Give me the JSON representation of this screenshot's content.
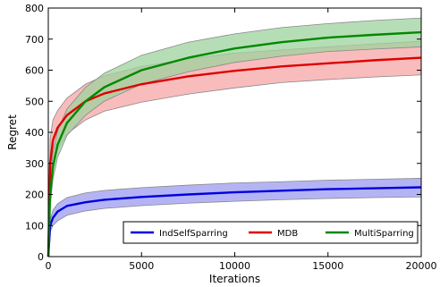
{
  "chart_data": {
    "type": "line",
    "xlabel": "Iterations",
    "ylabel": "Regret",
    "xlim": [
      0,
      20000
    ],
    "ylim": [
      0,
      800
    ],
    "x_ticks": [
      "0",
      "5000",
      "10000",
      "15000",
      "20000"
    ],
    "y_ticks": [
      "0",
      "100",
      "200",
      "300",
      "400",
      "500",
      "600",
      "700",
      "800"
    ],
    "legend_position": "lower-right",
    "grid": false,
    "x": [
      0,
      100,
      250,
      500,
      1000,
      2000,
      3000,
      5000,
      7500,
      10000,
      12500,
      15000,
      17500,
      20000
    ],
    "series": [
      {
        "name": "IndSelfSparring",
        "color": "#0000dd",
        "band_color": "#9b9bf2",
        "values": [
          0,
          100,
          125,
          145,
          163,
          175,
          183,
          192,
          200,
          207,
          212,
          217,
          220,
          223
        ],
        "lower": [
          0,
          80,
          100,
          115,
          133,
          147,
          155,
          164,
          172,
          178,
          183,
          187,
          190,
          192
        ],
        "upper": [
          0,
          120,
          150,
          170,
          190,
          205,
          213,
          222,
          230,
          237,
          241,
          246,
          249,
          252
        ]
      },
      {
        "name": "MDB",
        "color": "#dd0000",
        "band_color": "#f7a5a5",
        "values": [
          0,
          300,
          375,
          415,
          455,
          500,
          525,
          555,
          580,
          598,
          612,
          622,
          632,
          640
        ],
        "lower": [
          0,
          210,
          300,
          345,
          395,
          440,
          468,
          497,
          523,
          543,
          560,
          570,
          578,
          585
        ],
        "upper": [
          0,
          380,
          440,
          470,
          510,
          555,
          582,
          612,
          636,
          655,
          665,
          675,
          685,
          693
        ]
      },
      {
        "name": "MultiSparring",
        "color": "#008800",
        "band_color": "#9dd39d",
        "values": [
          0,
          200,
          290,
          360,
          430,
          500,
          545,
          600,
          640,
          670,
          690,
          705,
          714,
          722
        ],
        "lower": [
          0,
          160,
          250,
          320,
          390,
          455,
          500,
          555,
          595,
          625,
          645,
          660,
          668,
          675
        ],
        "upper": [
          0,
          240,
          335,
          405,
          475,
          545,
          590,
          648,
          690,
          717,
          737,
          750,
          760,
          768
        ]
      }
    ]
  }
}
